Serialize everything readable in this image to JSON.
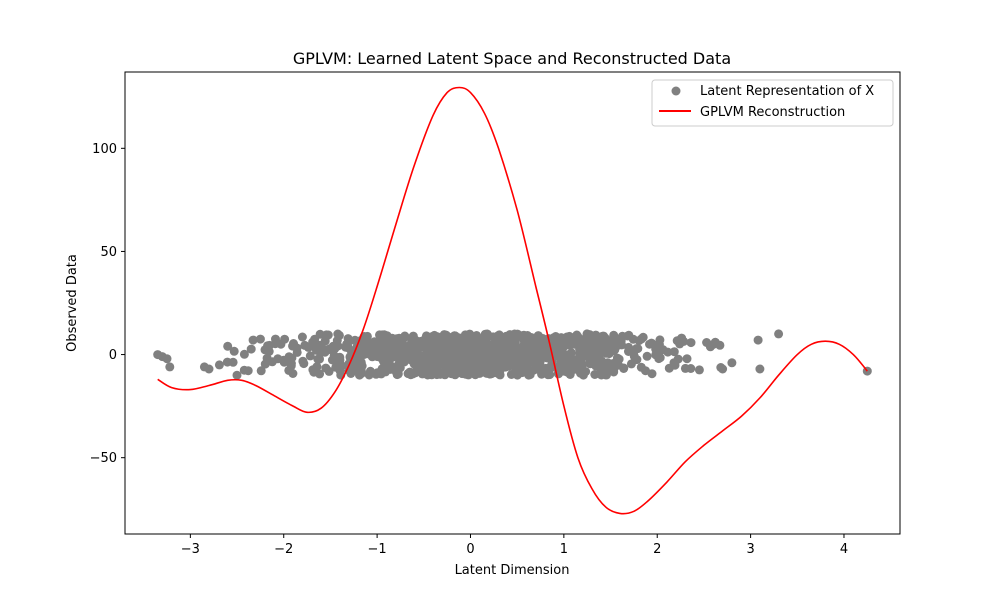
{
  "chart_data": {
    "type": "scatter",
    "title": "GPLVM: Learned Latent Space and Reconstructed Data",
    "xlabel": "Latent Dimension",
    "ylabel": "Observed Data",
    "xlim": [
      -3.7,
      4.6
    ],
    "ylim": [
      -87,
      137
    ],
    "x_ticks": [
      -3,
      -2,
      -1,
      0,
      1,
      2,
      3,
      4
    ],
    "x_tick_labels": [
      "−3",
      "−2",
      "−1",
      "0",
      "1",
      "2",
      "3",
      "4"
    ],
    "y_ticks": [
      -50,
      0,
      50,
      100
    ],
    "y_tick_labels": [
      "−50",
      "0",
      "50",
      "100"
    ],
    "grid": false,
    "legend_position": "top-right",
    "series": [
      {
        "name": "Latent Representation of X",
        "kind": "scatter",
        "color": "#808080",
        "x_range": [
          -3.35,
          4.25
        ],
        "y_range": [
          -12,
          12
        ],
        "approx_count": 1000,
        "outliers": [
          {
            "x": -3.35,
            "y": 0
          },
          {
            "x": -3.3,
            "y": -1
          },
          {
            "x": -3.25,
            "y": -2
          },
          {
            "x": -3.22,
            "y": -6
          },
          {
            "x": -2.85,
            "y": -6
          },
          {
            "x": -2.8,
            "y": -7
          },
          {
            "x": -2.6,
            "y": 4
          },
          {
            "x": -2.5,
            "y": -10
          },
          {
            "x": 2.7,
            "y": -7
          },
          {
            "x": 2.8,
            "y": -4
          },
          {
            "x": 3.08,
            "y": 7
          },
          {
            "x": 3.1,
            "y": -7
          },
          {
            "x": 3.3,
            "y": 10
          },
          {
            "x": 4.25,
            "y": -8
          }
        ]
      },
      {
        "name": "GPLVM Reconstruction",
        "kind": "line",
        "color": "#ff0000",
        "points": [
          [
            -3.35,
            -12
          ],
          [
            -3.2,
            -16
          ],
          [
            -3.0,
            -17
          ],
          [
            -2.8,
            -15
          ],
          [
            -2.6,
            -12.5
          ],
          [
            -2.45,
            -12.5
          ],
          [
            -2.3,
            -15
          ],
          [
            -2.1,
            -20
          ],
          [
            -1.9,
            -25
          ],
          [
            -1.75,
            -28
          ],
          [
            -1.6,
            -26
          ],
          [
            -1.45,
            -18
          ],
          [
            -1.3,
            -5
          ],
          [
            -1.15,
            12
          ],
          [
            -1.0,
            33
          ],
          [
            -0.8,
            63
          ],
          [
            -0.6,
            92
          ],
          [
            -0.4,
            116
          ],
          [
            -0.25,
            127
          ],
          [
            -0.12,
            129.5
          ],
          [
            0.0,
            127
          ],
          [
            0.15,
            117
          ],
          [
            0.3,
            100
          ],
          [
            0.5,
            70
          ],
          [
            0.7,
            33
          ],
          [
            0.85,
            5
          ],
          [
            1.0,
            -25
          ],
          [
            1.15,
            -50
          ],
          [
            1.3,
            -65
          ],
          [
            1.45,
            -74
          ],
          [
            1.6,
            -77
          ],
          [
            1.75,
            -76
          ],
          [
            1.9,
            -71
          ],
          [
            2.1,
            -62
          ],
          [
            2.3,
            -52
          ],
          [
            2.5,
            -44
          ],
          [
            2.7,
            -37
          ],
          [
            2.9,
            -30
          ],
          [
            3.1,
            -21
          ],
          [
            3.3,
            -10
          ],
          [
            3.5,
            0
          ],
          [
            3.65,
            5
          ],
          [
            3.8,
            6.5
          ],
          [
            3.95,
            5
          ],
          [
            4.1,
            0
          ],
          [
            4.25,
            -8
          ]
        ]
      }
    ]
  }
}
